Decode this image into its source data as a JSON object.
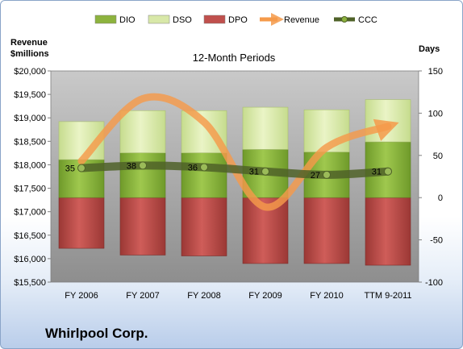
{
  "company": "Whirlpool Corp.",
  "chart_data": {
    "type": "bar",
    "title": "12-Month Periods",
    "categories": [
      "FY 2006",
      "FY 2007",
      "FY 2008",
      "FY 2009",
      "FY 2010",
      "TTM 9-2011"
    ],
    "left_axis": {
      "label_line1": "Revenue",
      "label_line2": "$millions",
      "range": [
        15500,
        20000
      ],
      "ticks": [
        "$15,500",
        "$16,000",
        "$16,500",
        "$17,000",
        "$17,500",
        "$18,000",
        "$18,500",
        "$19,000",
        "$19,500",
        "$20,000"
      ]
    },
    "right_axis": {
      "label": "Days",
      "range": [
        -100,
        150
      ],
      "ticks": [
        "-100",
        "-50",
        "0",
        "50",
        "100",
        "150"
      ]
    },
    "grid": false,
    "legend": {
      "placement": "top",
      "entries": [
        {
          "name": "DIO",
          "color": "#8db33e"
        },
        {
          "name": "DSO",
          "color": "#d8e8a8"
        },
        {
          "name": "DPO",
          "color": "#c0504d"
        },
        {
          "name": "Revenue",
          "color": "#f59a4a"
        },
        {
          "name": "CCC",
          "color": "#4f6228"
        }
      ]
    },
    "series": [
      {
        "name": "DIO",
        "axis": "right",
        "values": [
          45,
          53,
          53,
          57,
          54,
          66
        ]
      },
      {
        "name": "DSO",
        "axis": "right",
        "values": [
          45,
          50,
          50,
          50,
          50,
          50
        ]
      },
      {
        "name": "DPO",
        "axis": "right",
        "values": [
          -60,
          -68,
          -69,
          -78,
          -78,
          -80
        ]
      },
      {
        "name": "CCC",
        "axis": "right",
        "values": [
          35,
          38,
          36,
          31,
          27,
          31
        ]
      },
      {
        "name": "Revenue",
        "axis": "left",
        "values": [
          18080,
          19410,
          18910,
          17100,
          18370,
          18820
        ]
      }
    ],
    "data_labels": [
      "35",
      "38",
      "36",
      "31",
      "27",
      "31"
    ]
  }
}
